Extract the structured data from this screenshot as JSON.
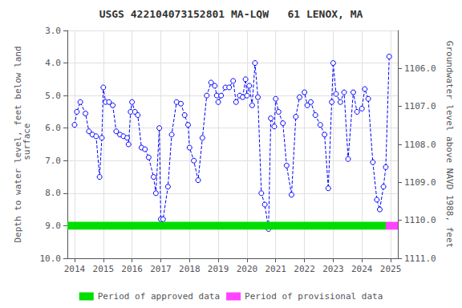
{
  "chart_data": {
    "type": "line",
    "title": "USGS 422104073152801 MA-LQW   61 LENOX, MA",
    "ylabel": "Depth to water level, feet below land\n surface",
    "y2label": "Groundwater level above NAVD 1988, feet",
    "xlim": [
      2013.75,
      2025.25
    ],
    "xticks": [
      2014,
      2015,
      2016,
      2017,
      2018,
      2019,
      2020,
      2021,
      2022,
      2023,
      2024,
      2025
    ],
    "ylim": [
      10.0,
      3.0
    ],
    "yticks": [
      {
        "value": 3.0,
        "label": "3.0"
      },
      {
        "value": 4.0,
        "label": "4.0"
      },
      {
        "value": 5.0,
        "label": "5.0"
      },
      {
        "value": 6.0,
        "label": "6.0"
      },
      {
        "value": 7.0,
        "label": "7.0"
      },
      {
        "value": 8.0,
        "label": "8.0"
      },
      {
        "value": 9.0,
        "label": "9.0"
      },
      {
        "value": 10.0,
        "label": "10.0"
      }
    ],
    "y2lim": [
      1111.0,
      1105.0
    ],
    "y2ticks": [
      {
        "value": 1111.0,
        "label": "1111.0"
      },
      {
        "value": 1110.0,
        "label": "1110.0"
      },
      {
        "value": 1109.0,
        "label": "1109.0"
      },
      {
        "value": 1108.0,
        "label": "1108.0"
      },
      {
        "value": 1107.0,
        "label": "1107.0"
      },
      {
        "value": 1106.0,
        "label": "1106.0"
      }
    ],
    "grid": true,
    "legend": "bottom",
    "series": [
      {
        "type": "line",
        "color": "#0000FF",
        "line_style": "dashed",
        "marker": "circle",
        "x": [
          2014.0,
          2014.08,
          2014.2,
          2014.38,
          2014.5,
          2014.62,
          2014.75,
          2014.87,
          2014.95,
          2015.0,
          2015.08,
          2015.2,
          2015.33,
          2015.45,
          2015.58,
          2015.7,
          2015.83,
          2015.88,
          2015.95,
          2016.0,
          2016.1,
          2016.2,
          2016.33,
          2016.45,
          2016.58,
          2016.75,
          2016.83,
          2016.95,
          2017.0,
          2017.04,
          2017.08,
          2017.25,
          2017.38,
          2017.55,
          2017.7,
          2017.83,
          2017.95,
          2018.0,
          2018.15,
          2018.3,
          2018.45,
          2018.6,
          2018.75,
          2018.88,
          2018.95,
          2019.0,
          2019.1,
          2019.25,
          2019.38,
          2019.52,
          2019.62,
          2019.75,
          2019.85,
          2019.95,
          2020.0,
          2020.08,
          2020.18,
          2020.28,
          2020.38,
          2020.5,
          2020.62,
          2020.75,
          2020.83,
          2020.95,
          2021.0,
          2021.1,
          2021.25,
          2021.38,
          2021.55,
          2021.7,
          2021.83,
          2022.0,
          2022.1,
          2022.22,
          2022.38,
          2022.55,
          2022.7,
          2022.83,
          2022.95,
          2023.0,
          2023.1,
          2023.25,
          2023.38,
          2023.52,
          2023.7,
          2023.83,
          2024.0,
          2024.1,
          2024.22,
          2024.38,
          2024.52,
          2024.62,
          2024.75,
          2024.83,
          2024.95
        ],
        "values": [
          5.9,
          5.5,
          5.2,
          5.55,
          6.1,
          6.2,
          6.25,
          7.5,
          6.3,
          4.75,
          5.2,
          5.2,
          5.3,
          6.1,
          6.2,
          6.25,
          6.3,
          6.5,
          5.5,
          5.2,
          5.5,
          5.6,
          6.6,
          6.65,
          6.9,
          7.5,
          8.0,
          6.0,
          8.8,
          9.0,
          8.8,
          7.8,
          6.2,
          5.2,
          5.25,
          5.6,
          5.9,
          6.6,
          7.0,
          7.6,
          6.3,
          5.0,
          4.6,
          4.7,
          5.0,
          5.2,
          5.0,
          4.75,
          4.75,
          4.55,
          5.2,
          5.0,
          5.05,
          4.5,
          5.0,
          4.7,
          5.3,
          4.0,
          5.05,
          8.0,
          8.35,
          9.1,
          5.7,
          5.95,
          5.1,
          5.5,
          5.85,
          7.15,
          8.05,
          5.65,
          5.05,
          4.9,
          5.3,
          5.2,
          5.6,
          5.9,
          6.2,
          7.85,
          5.2,
          4.0,
          4.95,
          5.2,
          4.9,
          6.95,
          4.9,
          5.5,
          5.4,
          4.8,
          5.1,
          7.05,
          8.2,
          8.5,
          7.8,
          7.2,
          3.8
        ]
      },
      {
        "name": "Period of approved data",
        "type": "span",
        "color": "#00dd00",
        "x": [
          2013.75,
          2024.83
        ],
        "y": 9.0,
        "half_height": 0.12
      },
      {
        "name": "Period of provisional data",
        "type": "span",
        "color": "#ff44ff",
        "x": [
          2024.83,
          2025.25
        ],
        "y": 9.0,
        "half_height": 0.12
      }
    ]
  }
}
